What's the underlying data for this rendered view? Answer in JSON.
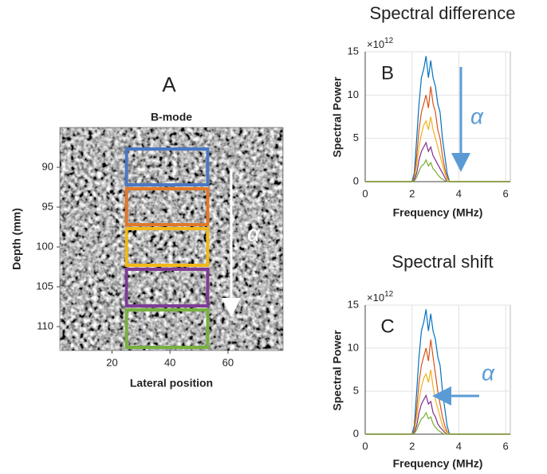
{
  "chart_data": [
    {
      "type": "image",
      "panel_label": "A",
      "title": "B-mode",
      "x_label": "Lateral position",
      "y_label": "Depth (mm)",
      "xlim": [
        2,
        79
      ],
      "ylim": [
        85,
        113
      ],
      "xticks": [
        20,
        40,
        60
      ],
      "yticks": [
        90,
        95,
        100,
        105,
        110
      ],
      "y_inverted": true,
      "annotation": "α",
      "rois": [
        {
          "color": "#4a78c2",
          "x": [
            25,
            53
          ],
          "y": [
            87.7,
            92.2
          ]
        },
        {
          "color": "#e0782a",
          "x": [
            25,
            53
          ],
          "y": [
            92.7,
            97.2
          ]
        },
        {
          "color": "#f2b81a",
          "x": [
            25,
            53
          ],
          "y": [
            97.7,
            102.3
          ]
        },
        {
          "color": "#7e3c96",
          "x": [
            25,
            53
          ],
          "y": [
            102.8,
            107.4
          ]
        },
        {
          "color": "#78b040",
          "x": [
            25,
            53
          ],
          "y": [
            107.9,
            112.6
          ]
        }
      ]
    },
    {
      "type": "line",
      "panel_label": "B",
      "title": "Spectral difference",
      "x_label": "Frequency (MHz)",
      "y_label": "Spectral Power",
      "y_multiplier": {
        "base": "×10",
        "exponent": 12
      },
      "annotation": "α",
      "grid": true,
      "xlim": [
        0,
        6.2
      ],
      "ylim": [
        0,
        15
      ],
      "xticks": [
        0,
        2,
        4,
        6
      ],
      "yticks": [
        0,
        5,
        10,
        15
      ],
      "x": [
        0,
        2.0,
        2.1,
        2.2,
        2.3,
        2.4,
        2.5,
        2.6,
        2.7,
        2.8,
        2.9,
        3.0,
        3.1,
        3.2,
        3.3,
        3.4,
        3.5,
        3.6,
        6.2
      ],
      "series": [
        {
          "color": "#0072bd",
          "values": [
            0,
            0,
            1,
            5,
            9,
            12,
            13,
            14.5,
            12,
            14,
            12,
            11,
            9,
            8,
            5,
            3,
            1,
            0,
            0
          ]
        },
        {
          "color": "#d95319",
          "values": [
            0,
            0,
            0.5,
            3,
            6,
            8,
            9,
            10,
            8.5,
            11,
            9,
            8,
            6,
            5,
            3,
            1.5,
            0.5,
            0,
            0
          ]
        },
        {
          "color": "#edb120",
          "values": [
            0,
            0,
            0.3,
            2,
            4,
            5.5,
            6.5,
            7,
            6,
            7.5,
            6,
            5,
            4,
            3,
            2,
            1,
            0.3,
            0,
            0
          ]
        },
        {
          "color": "#7e2f8e",
          "values": [
            0,
            0,
            0.2,
            1,
            2.5,
            3.5,
            4,
            4.5,
            3.5,
            4,
            3,
            2.5,
            2,
            1.5,
            1,
            0.5,
            0,
            0,
            0
          ]
        },
        {
          "color": "#77ac30",
          "values": [
            0,
            0,
            0.1,
            0.5,
            1.2,
            1.8,
            2,
            2.5,
            1.8,
            2.2,
            1.5,
            1.2,
            0.8,
            0.5,
            0.3,
            0.1,
            0,
            0,
            0
          ]
        }
      ]
    },
    {
      "type": "line",
      "panel_label": "C",
      "title": "Spectral shift",
      "x_label": "Frequency (MHz)",
      "y_label": "Spectral Power",
      "y_multiplier": {
        "base": "×10",
        "exponent": 12
      },
      "annotation": "α",
      "grid": true,
      "xlim": [
        0,
        6.2
      ],
      "ylim": [
        0,
        15
      ],
      "xticks": [
        0,
        2,
        4,
        6
      ],
      "yticks": [
        0,
        5,
        10,
        15
      ],
      "x": [
        0,
        2.0,
        2.1,
        2.2,
        2.3,
        2.4,
        2.5,
        2.6,
        2.7,
        2.8,
        2.9,
        3.0,
        3.1,
        3.2,
        3.3,
        3.4,
        3.5,
        3.6,
        6.2
      ],
      "series": [
        {
          "color": "#0072bd",
          "values": [
            0,
            0,
            1,
            5,
            9,
            12,
            13,
            14.5,
            12,
            14,
            12,
            11,
            9,
            8,
            5,
            3,
            1,
            0,
            0
          ]
        },
        {
          "color": "#d95319",
          "values": [
            0,
            0,
            0.5,
            3,
            6,
            8,
            9,
            10,
            8.5,
            11,
            9,
            7,
            5,
            3.5,
            2,
            1,
            0.3,
            0,
            0
          ]
        },
        {
          "color": "#edb120",
          "values": [
            0,
            0,
            0.3,
            2,
            4,
            5.5,
            6.5,
            7,
            6,
            7.5,
            5.5,
            4,
            3,
            2,
            1,
            0.5,
            0.2,
            0,
            0
          ]
        },
        {
          "color": "#7e2f8e",
          "values": [
            0,
            0,
            0.2,
            1,
            2.5,
            3.5,
            4,
            4.5,
            3.5,
            3.8,
            2.5,
            2,
            1.2,
            0.8,
            0.5,
            0.2,
            0,
            0,
            0
          ]
        },
        {
          "color": "#77ac30",
          "values": [
            0,
            0,
            0.1,
            0.5,
            1.2,
            1.8,
            2,
            2.5,
            1.8,
            2,
            1.2,
            0.8,
            0.5,
            0.3,
            0.1,
            0,
            0,
            0,
            0
          ]
        }
      ]
    }
  ]
}
